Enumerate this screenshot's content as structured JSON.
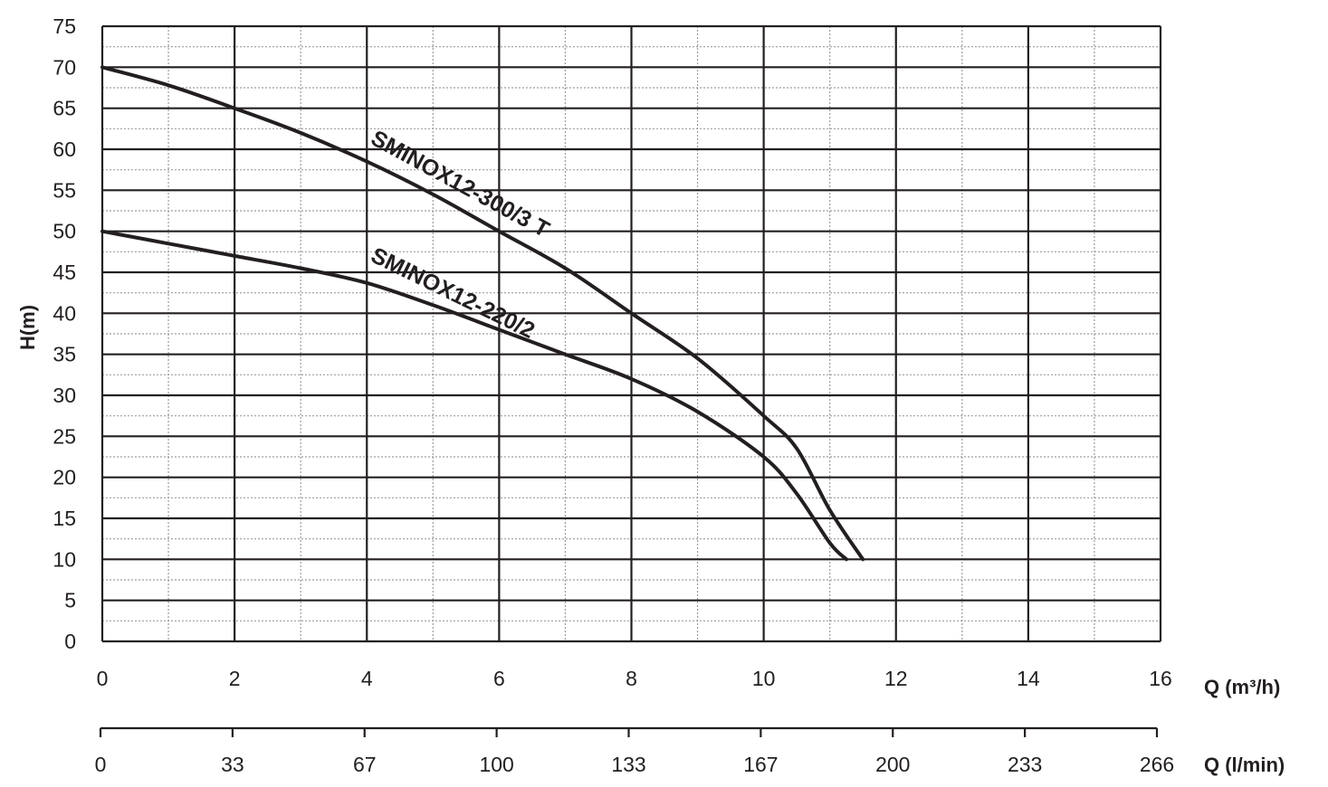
{
  "chart_data": {
    "type": "line",
    "y_axis": {
      "label": "H(m)",
      "range": [
        0,
        75
      ],
      "ticks": [
        "0",
        "5",
        "10",
        "15",
        "20",
        "25",
        "30",
        "35",
        "40",
        "45",
        "50",
        "55",
        "60",
        "65",
        "70",
        "75"
      ]
    },
    "x_axis": {
      "label": "Q (m³/h)",
      "range": [
        0,
        16
      ],
      "ticks": [
        "0",
        "2",
        "4",
        "6",
        "8",
        "10",
        "12",
        "14",
        "16"
      ]
    },
    "x2_axis": {
      "label": "Q (l/min)",
      "ticks": [
        "0",
        "33",
        "67",
        "100",
        "133",
        "167",
        "200",
        "233",
        "266"
      ]
    },
    "grid": true,
    "series": [
      {
        "name": "SMINOX12-300/3 T",
        "x": [
          0,
          1,
          2,
          3,
          4,
          5,
          6,
          7,
          8,
          9,
          10,
          10.5,
          11,
          11.5
        ],
        "y": [
          70,
          67.8,
          65,
          62,
          58.5,
          54.5,
          50,
          45.5,
          40,
          34.5,
          27.5,
          23.5,
          16,
          10
        ]
      },
      {
        "name": "SMINOX12-220/2",
        "x": [
          0,
          1,
          2,
          3,
          4,
          5,
          6,
          7,
          8,
          9,
          10,
          10.5,
          11,
          11.25
        ],
        "y": [
          50,
          48.5,
          47,
          45.5,
          43.7,
          41,
          38,
          35,
          32,
          28,
          22.5,
          18,
          12,
          10
        ]
      }
    ]
  }
}
